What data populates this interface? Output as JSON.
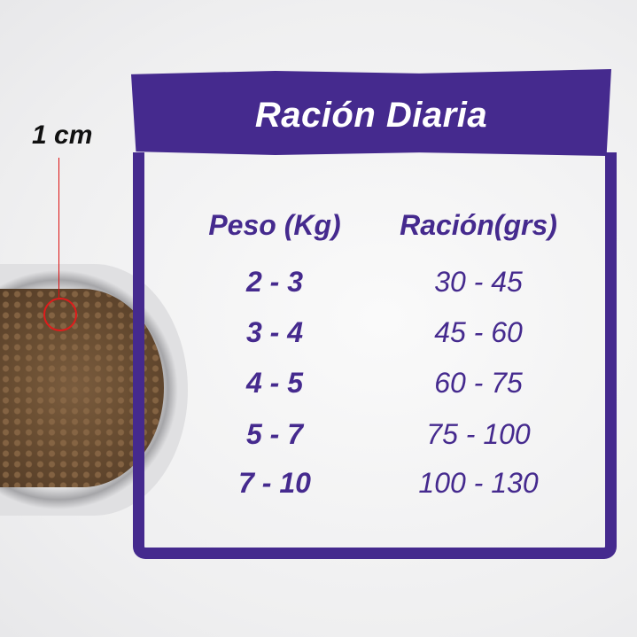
{
  "scale_label": "1 cm",
  "table": {
    "title": "Ración Diaria",
    "headers": [
      "Peso (Kg)",
      "Ración(grs)"
    ],
    "rows": [
      {
        "peso": "2 - 3",
        "racion": "30 - 45"
      },
      {
        "peso": "3 - 4",
        "racion": "45 - 60"
      },
      {
        "peso": "4 - 5",
        "racion": "60 - 75"
      },
      {
        "peso": "5 - 7",
        "racion": "75 - 100"
      },
      {
        "peso": "7 - 10",
        "racion": "100 - 130"
      }
    ]
  },
  "colors": {
    "brand_purple": "#452a8e",
    "marker_red": "#e01b1b"
  }
}
